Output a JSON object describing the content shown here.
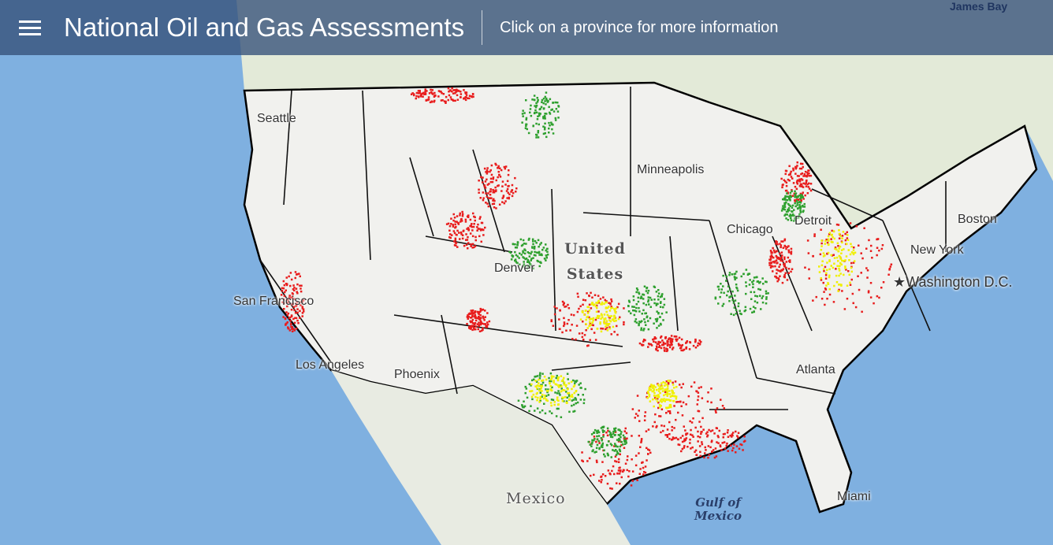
{
  "header": {
    "title": "National Oil and Gas Assessments",
    "subtitle": "Click on a province for more information",
    "menu_icon": "hamburger-menu-icon"
  },
  "map": {
    "labels": {
      "james_bay": "James Bay",
      "seattle": "Seattle",
      "san_francisco": "San Francisco",
      "los_angeles": "Los Angeles",
      "phoenix": "Phoenix",
      "denver": "Denver",
      "united_states": "United States",
      "minneapolis": "Minneapolis",
      "chicago": "Chicago",
      "detroit": "Detroit",
      "boston": "Boston",
      "new_york": "New York",
      "washington": "Washington D.C.",
      "atlanta": "Atlanta",
      "miami": "Miami",
      "mexico": "Mexico",
      "gulf": "Gulf of Mexico"
    },
    "colors": {
      "ocean": "#7fb0e0",
      "land": "#eef0ea",
      "province_border": "#000000",
      "oil": "#2ea02e",
      "gas": "#e81c1c",
      "oil_and_gas": "#f0f000"
    }
  }
}
